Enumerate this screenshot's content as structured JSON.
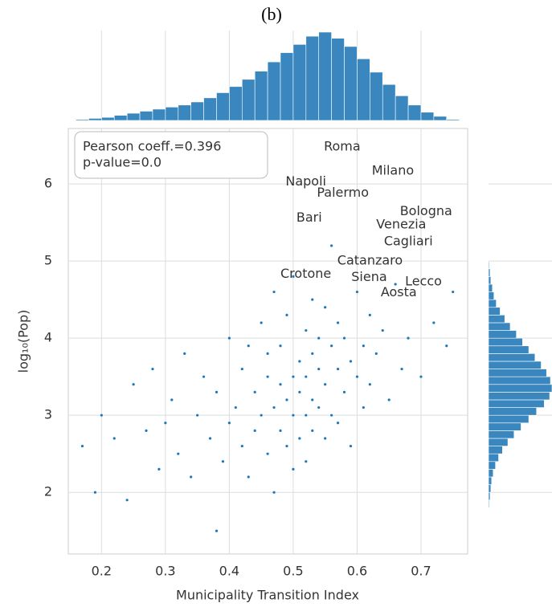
{
  "chart_data": [
    {
      "type": "scatter",
      "title": "(b)",
      "x_label": "Municipality Transition Index",
      "y_label": "log₁₀(Pop)",
      "color": "#1f77b4",
      "x": [
        0.17,
        0.19,
        0.2,
        0.22,
        0.24,
        0.25,
        0.27,
        0.28,
        0.29,
        0.3,
        0.31,
        0.32,
        0.33,
        0.34,
        0.35,
        0.36,
        0.37,
        0.38,
        0.38,
        0.39,
        0.4,
        0.4,
        0.41,
        0.42,
        0.42,
        0.43,
        0.43,
        0.44,
        0.44,
        0.45,
        0.45,
        0.46,
        0.46,
        0.46,
        0.47,
        0.47,
        0.47,
        0.48,
        0.48,
        0.48,
        0.49,
        0.49,
        0.49,
        0.5,
        0.5,
        0.5,
        0.5,
        0.51,
        0.51,
        0.51,
        0.52,
        0.52,
        0.52,
        0.52,
        0.53,
        0.53,
        0.53,
        0.53,
        0.54,
        0.54,
        0.54,
        0.55,
        0.55,
        0.55,
        0.56,
        0.56,
        0.56,
        0.57,
        0.57,
        0.57,
        0.58,
        0.58,
        0.59,
        0.59,
        0.6,
        0.6,
        0.61,
        0.61,
        0.62,
        0.62,
        0.63,
        0.64,
        0.65,
        0.66,
        0.67,
        0.68,
        0.7,
        0.72,
        0.74,
        0.75
      ],
      "values": [
        2.6,
        2.0,
        3.0,
        2.7,
        1.9,
        3.4,
        2.8,
        3.6,
        2.3,
        2.9,
        3.2,
        2.5,
        3.8,
        2.2,
        3.0,
        3.5,
        2.7,
        1.5,
        3.3,
        2.4,
        4.0,
        2.9,
        3.1,
        2.6,
        3.6,
        3.9,
        2.2,
        3.3,
        2.8,
        4.2,
        3.0,
        3.5,
        2.5,
        3.8,
        3.1,
        4.6,
        2.0,
        3.4,
        2.8,
        3.9,
        3.2,
        4.3,
        2.6,
        3.5,
        3.0,
        4.8,
        2.3,
        3.7,
        3.3,
        2.7,
        4.1,
        3.5,
        3.0,
        2.4,
        3.8,
        3.2,
        4.5,
        2.8,
        3.6,
        4.0,
        3.1,
        3.4,
        4.4,
        2.7,
        3.9,
        3.0,
        5.2,
        3.6,
        4.2,
        2.9,
        3.3,
        4.0,
        3.7,
        2.6,
        3.5,
        4.6,
        3.9,
        3.1,
        4.3,
        3.4,
        3.8,
        4.1,
        3.2,
        4.7,
        3.6,
        4.0,
        3.5,
        4.2,
        3.9,
        4.6
      ],
      "xlim": [
        0.148,
        0.773
      ],
      "ylim": [
        1.2,
        6.72
      ],
      "xticks": [
        0.2,
        0.3,
        0.4,
        0.5,
        0.6,
        0.7
      ],
      "yticks": [
        2,
        3,
        4,
        5,
        6
      ],
      "grid": true,
      "stats_box": [
        "Pearson coeff.=0.396",
        "p-value=0.0"
      ],
      "annotations": [
        {
          "text": "Roma",
          "x": 0.548,
          "y": 6.48
        },
        {
          "text": "Napoli",
          "x": 0.488,
          "y": 6.03
        },
        {
          "text": "Milano",
          "x": 0.623,
          "y": 6.17
        },
        {
          "text": "Palermo",
          "x": 0.537,
          "y": 5.88
        },
        {
          "text": "Bari",
          "x": 0.505,
          "y": 5.56
        },
        {
          "text": "Bologna",
          "x": 0.667,
          "y": 5.64
        },
        {
          "text": "Venezia",
          "x": 0.63,
          "y": 5.47
        },
        {
          "text": "Cagliari",
          "x": 0.642,
          "y": 5.25
        },
        {
          "text": "Catanzaro",
          "x": 0.569,
          "y": 5.0
        },
        {
          "text": "Crotone",
          "x": 0.48,
          "y": 4.83
        },
        {
          "text": "Siena",
          "x": 0.591,
          "y": 4.79
        },
        {
          "text": "Lecco",
          "x": 0.675,
          "y": 4.73
        },
        {
          "text": "Aosta",
          "x": 0.637,
          "y": 4.59
        }
      ]
    },
    {
      "type": "histogram",
      "orientation": "vertical",
      "color": "#3a87c0",
      "bins": [
        0.16,
        0.18,
        0.2,
        0.22,
        0.24,
        0.26,
        0.28,
        0.3,
        0.32,
        0.34,
        0.36,
        0.38,
        0.4,
        0.42,
        0.44,
        0.46,
        0.48,
        0.5,
        0.52,
        0.54,
        0.56,
        0.58,
        0.6,
        0.62,
        0.64,
        0.66,
        0.68,
        0.7,
        0.72,
        0.74,
        0.76
      ],
      "counts": [
        1,
        2,
        3,
        5,
        7,
        9,
        11,
        13,
        15,
        18,
        22,
        27,
        33,
        40,
        48,
        57,
        66,
        74,
        82,
        86,
        80,
        72,
        60,
        47,
        35,
        24,
        15,
        8,
        4,
        1
      ]
    },
    {
      "type": "histogram",
      "orientation": "horizontal",
      "color": "#3a87c0",
      "bins": [
        1.8,
        1.9,
        2.0,
        2.1,
        2.2,
        2.3,
        2.4,
        2.5,
        2.6,
        2.7,
        2.8,
        2.9,
        3.0,
        3.1,
        3.2,
        3.3,
        3.4,
        3.5,
        3.6,
        3.7,
        3.8,
        3.9,
        4.0,
        4.1,
        4.2,
        4.3,
        4.4,
        4.5,
        4.6,
        4.7,
        4.8,
        4.9,
        5.0
      ],
      "counts": [
        1,
        2,
        3,
        4,
        6,
        9,
        13,
        18,
        25,
        33,
        42,
        52,
        62,
        72,
        79,
        82,
        80,
        75,
        68,
        60,
        52,
        44,
        36,
        28,
        21,
        15,
        10,
        7,
        5,
        3,
        2,
        1
      ]
    }
  ]
}
